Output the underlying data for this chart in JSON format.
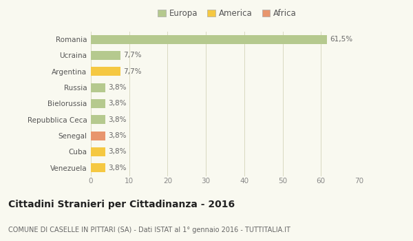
{
  "categories": [
    "Romania",
    "Ucraina",
    "Argentina",
    "Russia",
    "Bielorussia",
    "Repubblica Ceca",
    "Senegal",
    "Cuba",
    "Venezuela"
  ],
  "values": [
    61.5,
    7.7,
    7.7,
    3.8,
    3.8,
    3.8,
    3.8,
    3.8,
    3.8
  ],
  "labels": [
    "61,5%",
    "7,7%",
    "7,7%",
    "3,8%",
    "3,8%",
    "3,8%",
    "3,8%",
    "3,8%",
    "3,8%"
  ],
  "colors": [
    "#b5c98e",
    "#b5c98e",
    "#f5c842",
    "#b5c98e",
    "#b5c98e",
    "#b5c98e",
    "#e8956d",
    "#f5c842",
    "#f5c842"
  ],
  "legend": [
    {
      "label": "Europa",
      "color": "#b5c98e"
    },
    {
      "label": "America",
      "color": "#f5c842"
    },
    {
      "label": "Africa",
      "color": "#e8956d"
    }
  ],
  "xlim": [
    0,
    70
  ],
  "xticks": [
    0,
    10,
    20,
    30,
    40,
    50,
    60,
    70
  ],
  "title": "Cittadini Stranieri per Cittadinanza - 2016",
  "subtitle": "COMUNE DI CASELLE IN PITTARI (SA) - Dati ISTAT al 1° gennaio 2016 - TUTTITALIA.IT",
  "background_color": "#f9f9f0",
  "grid_color": "#d8d8c0",
  "bar_height": 0.55,
  "label_fontsize": 7.5,
  "ytick_fontsize": 7.5,
  "xtick_fontsize": 7.5,
  "title_fontsize": 10,
  "subtitle_fontsize": 7,
  "legend_fontsize": 8.5
}
